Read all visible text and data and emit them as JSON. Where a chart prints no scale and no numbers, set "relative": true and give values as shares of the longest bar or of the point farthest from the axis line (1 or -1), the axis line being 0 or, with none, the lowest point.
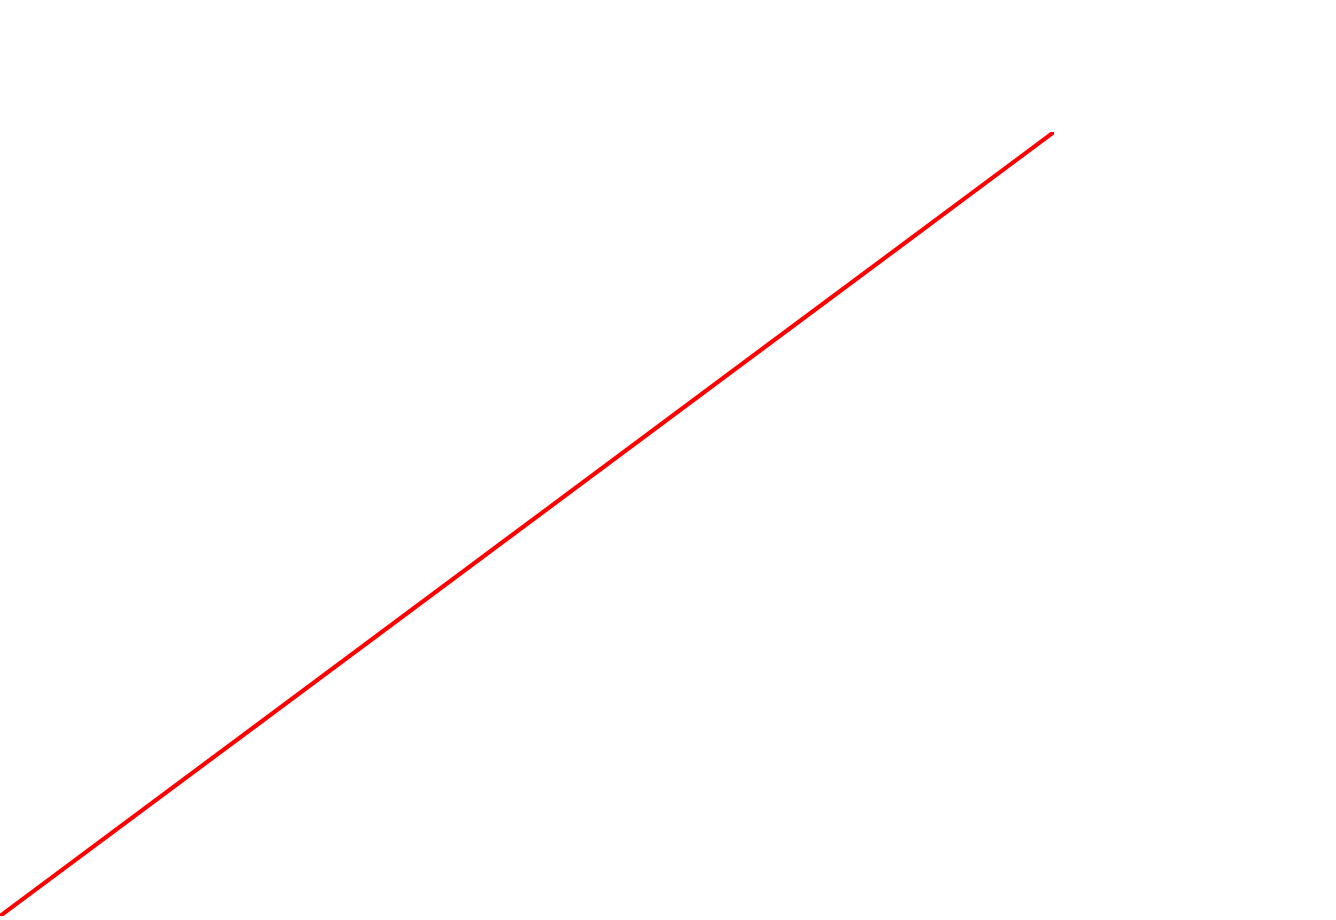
{
  "chart_data": {
    "type": "line",
    "relative": true,
    "categories": [
      null,
      null
    ],
    "series": [
      {
        "color": "#ff0000",
        "values": [
          0,
          1
        ]
      }
    ]
  }
}
